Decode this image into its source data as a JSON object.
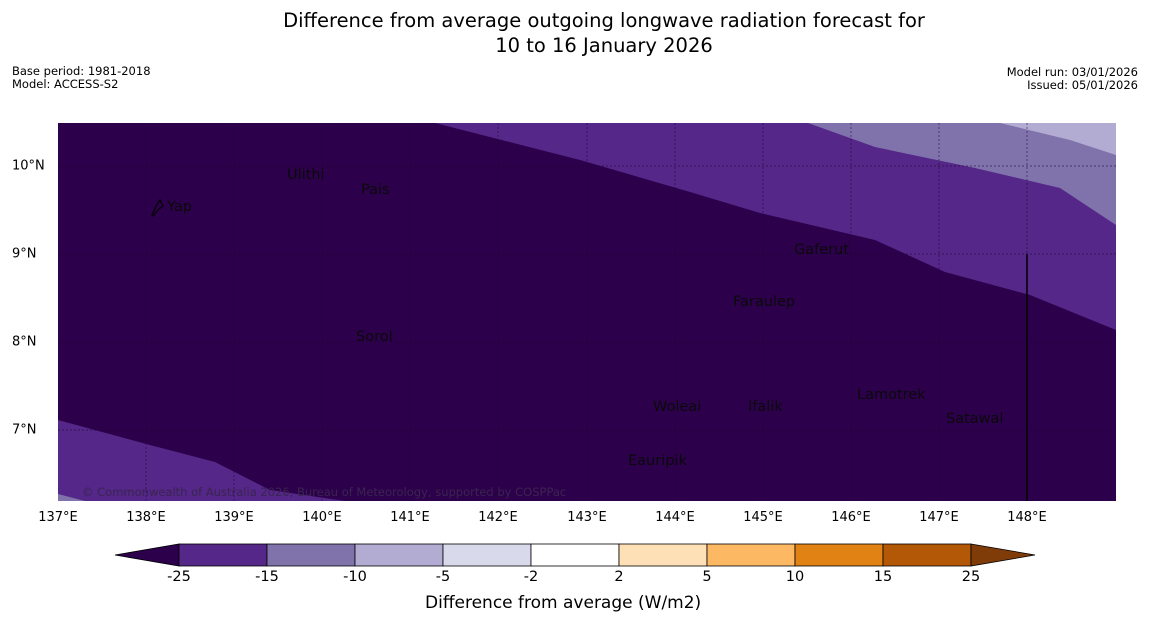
{
  "title_line1": "Difference from average outgoing longwave radiation forecast for",
  "title_line2": "10 to 16 January 2026",
  "base_period": "Base period: 1981-2018",
  "model": "Model: ACCESS-S2",
  "model_run": "Model run: 03/01/2026",
  "issued": "Issued: 05/01/2026",
  "x_ticks": [
    "137°E",
    "138°E",
    "139°E",
    "140°E",
    "141°E",
    "142°E",
    "143°E",
    "144°E",
    "145°E",
    "146°E",
    "147°E",
    "148°E"
  ],
  "y_ticks": [
    "10°N",
    "9°N",
    "8°N",
    "7°N"
  ],
  "places": {
    "yap": "Yap",
    "ulithi": "Ulithi",
    "pais": "Pais",
    "gaferut": "Gaferut",
    "faraulep": "Faraulep",
    "sorol": "Sorol",
    "woleai": "Woleai",
    "ifalik": "Ifalik",
    "lamotrek": "Lamotrek",
    "satawal": "Satawal",
    "eauripik": "Eauripik"
  },
  "copyright": "© Commonwealth of Australia 2026, Bureau of Meteorology, supported by COSPPac",
  "colorbar": {
    "ticks": [
      "-25",
      "-15",
      "-10",
      "-5",
      "-2",
      "2",
      "5",
      "10",
      "15",
      "25"
    ],
    "title": "Difference from average (W/m2)",
    "colors": {
      "below_min": "#2d004b",
      "c1": "#542788",
      "c2": "#8073ac",
      "c3": "#b2abd2",
      "c4": "#d8daeb",
      "c5": "#ffffff",
      "c6": "#fee0b6",
      "c7": "#fdb863",
      "c8": "#e08214",
      "c9": "#b35806",
      "above_max": "#7f3b08"
    }
  }
}
